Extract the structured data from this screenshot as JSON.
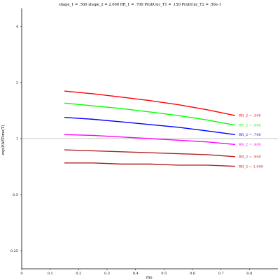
{
  "chart_data": {
    "type": "line",
    "title": "shape_1 = .500  shape_2 = 2.000  RR_1 = .700  ProbUnc_T1 = .150  ProbUnc_T2 = .50e-1",
    "xlabel": "rho",
    "ylabel": "exp(EAETime/T)",
    "x_scale": "linear",
    "y_scale": "log",
    "xlim": [
      0,
      0.9
    ],
    "ylim": [
      0.2,
      5
    ],
    "x_ticks": [
      0,
      0.1,
      0.2,
      0.3,
      0.4,
      0.5,
      0.6,
      0.7,
      0.8
    ],
    "x_tick_labels": [
      "0",
      "0.1",
      "0.2",
      "0.3",
      "0.4",
      "0.5",
      "0.6",
      "0.7",
      "0.8"
    ],
    "y_ticks": [
      0.25,
      0.5,
      1,
      2,
      4
    ],
    "y_tick_labels": [
      "0.25",
      "0.5",
      "1",
      "2",
      "4"
    ],
    "reference_line": 1,
    "grid": false,
    "legend": "labels at right end of each line",
    "x": [
      0.15,
      0.25,
      0.35,
      0.45,
      0.55,
      0.65,
      0.75
    ],
    "series": [
      {
        "name": "RR_2 = .500",
        "color": "#ff0000",
        "values": [
          1.8,
          1.74,
          1.67,
          1.6,
          1.52,
          1.43,
          1.33
        ]
      },
      {
        "name": "RR_2 = .600",
        "color": "#00ff00",
        "values": [
          1.55,
          1.5,
          1.45,
          1.39,
          1.33,
          1.26,
          1.18
        ]
      },
      {
        "name": "RR_2 = .700",
        "color": "#0000ff",
        "values": [
          1.3,
          1.27,
          1.23,
          1.19,
          1.15,
          1.1,
          1.05
        ]
      },
      {
        "name": "RR_2 = .800",
        "color": "#ff00ff",
        "values": [
          1.05,
          1.04,
          1.02,
          1.0,
          0.98,
          0.96,
          0.93
        ]
      },
      {
        "name": "RR_2 = .900",
        "color": "#b22222",
        "values": [
          0.87,
          0.86,
          0.85,
          0.84,
          0.83,
          0.82,
          0.8
        ]
      },
      {
        "name": "RR_2 = 1.000",
        "color": "#b22222",
        "values": [
          0.74,
          0.74,
          0.73,
          0.73,
          0.72,
          0.72,
          0.71
        ]
      }
    ]
  }
}
